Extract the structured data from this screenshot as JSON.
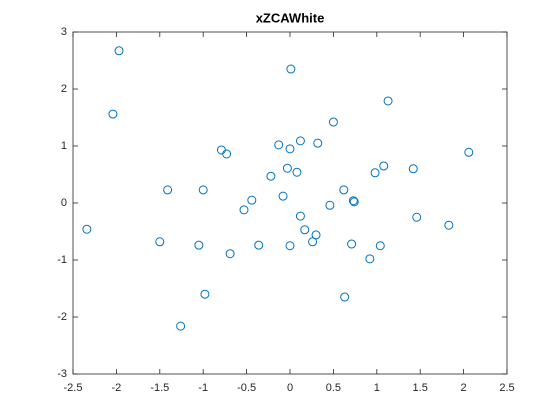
{
  "chart_data": {
    "type": "scatter",
    "title": "xZCAWhite",
    "x": [
      -1.97,
      0.01,
      -2.04,
      1.13,
      0.5,
      2.06,
      -0.79,
      -0.73,
      -0.13,
      0.12,
      0.0,
      0.32,
      1.08,
      0.98,
      1.42,
      -0.03,
      0.08,
      -0.22,
      0.62,
      -1.41,
      -1.0,
      -0.08,
      -0.44,
      0.73,
      0.74,
      0.46,
      -0.53,
      1.46,
      0.12,
      -2.34,
      1.83,
      0.17,
      0.3,
      0.26,
      -1.5,
      -1.05,
      -0.36,
      0.0,
      0.71,
      1.04,
      -0.69,
      0.92,
      -0.98,
      0.63,
      -1.26
    ],
    "values": [
      2.67,
      2.35,
      1.56,
      1.79,
      1.42,
      0.89,
      0.93,
      0.86,
      1.02,
      1.09,
      0.95,
      1.05,
      0.65,
      0.53,
      0.6,
      0.61,
      0.54,
      0.47,
      0.23,
      0.23,
      0.23,
      0.12,
      0.05,
      0.04,
      0.02,
      -0.04,
      -0.12,
      -0.25,
      -0.23,
      -0.46,
      -0.39,
      -0.47,
      -0.56,
      -0.68,
      -0.68,
      -0.74,
      -0.74,
      -0.75,
      -0.72,
      -0.75,
      -0.89,
      -0.98,
      -1.6,
      -1.65,
      -2.16
    ],
    "color": "#0072bd",
    "xlim": [
      -2.5,
      2.5
    ],
    "xticks": [
      -2.5,
      -2,
      -1.5,
      -1,
      -0.5,
      0,
      0.5,
      1,
      1.5,
      2,
      2.5
    ],
    "ylim": [
      -3,
      3
    ],
    "yticks": [
      -3,
      -2,
      -1,
      0,
      1,
      2,
      3
    ]
  }
}
